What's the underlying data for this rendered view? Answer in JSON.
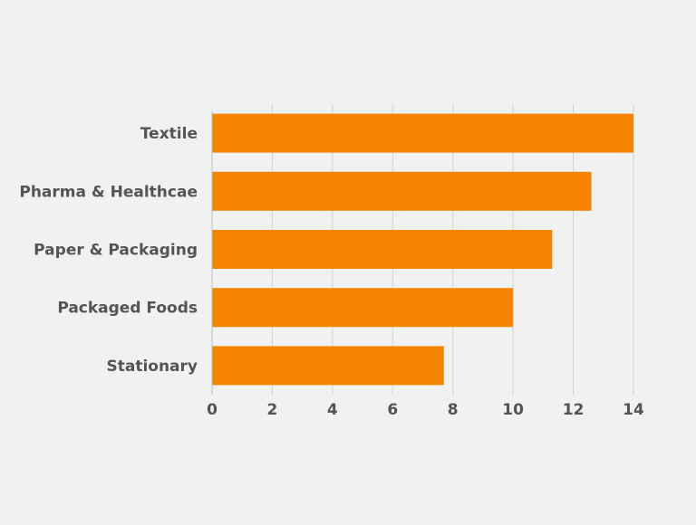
{
  "chart_data": {
    "type": "bar",
    "orientation": "horizontal",
    "categories": [
      "Textile",
      "Pharma & Healthcae",
      "Paper & Packaging",
      "Packaged Foods",
      "Stationary"
    ],
    "values": [
      14,
      12.6,
      11.3,
      10,
      7.7
    ],
    "xlim": [
      0,
      14
    ],
    "xticks": [
      "0",
      "2",
      "4",
      "6",
      "8",
      "10",
      "12",
      "14"
    ],
    "grid": true,
    "legend": "none",
    "bar_color": "#f58400"
  }
}
